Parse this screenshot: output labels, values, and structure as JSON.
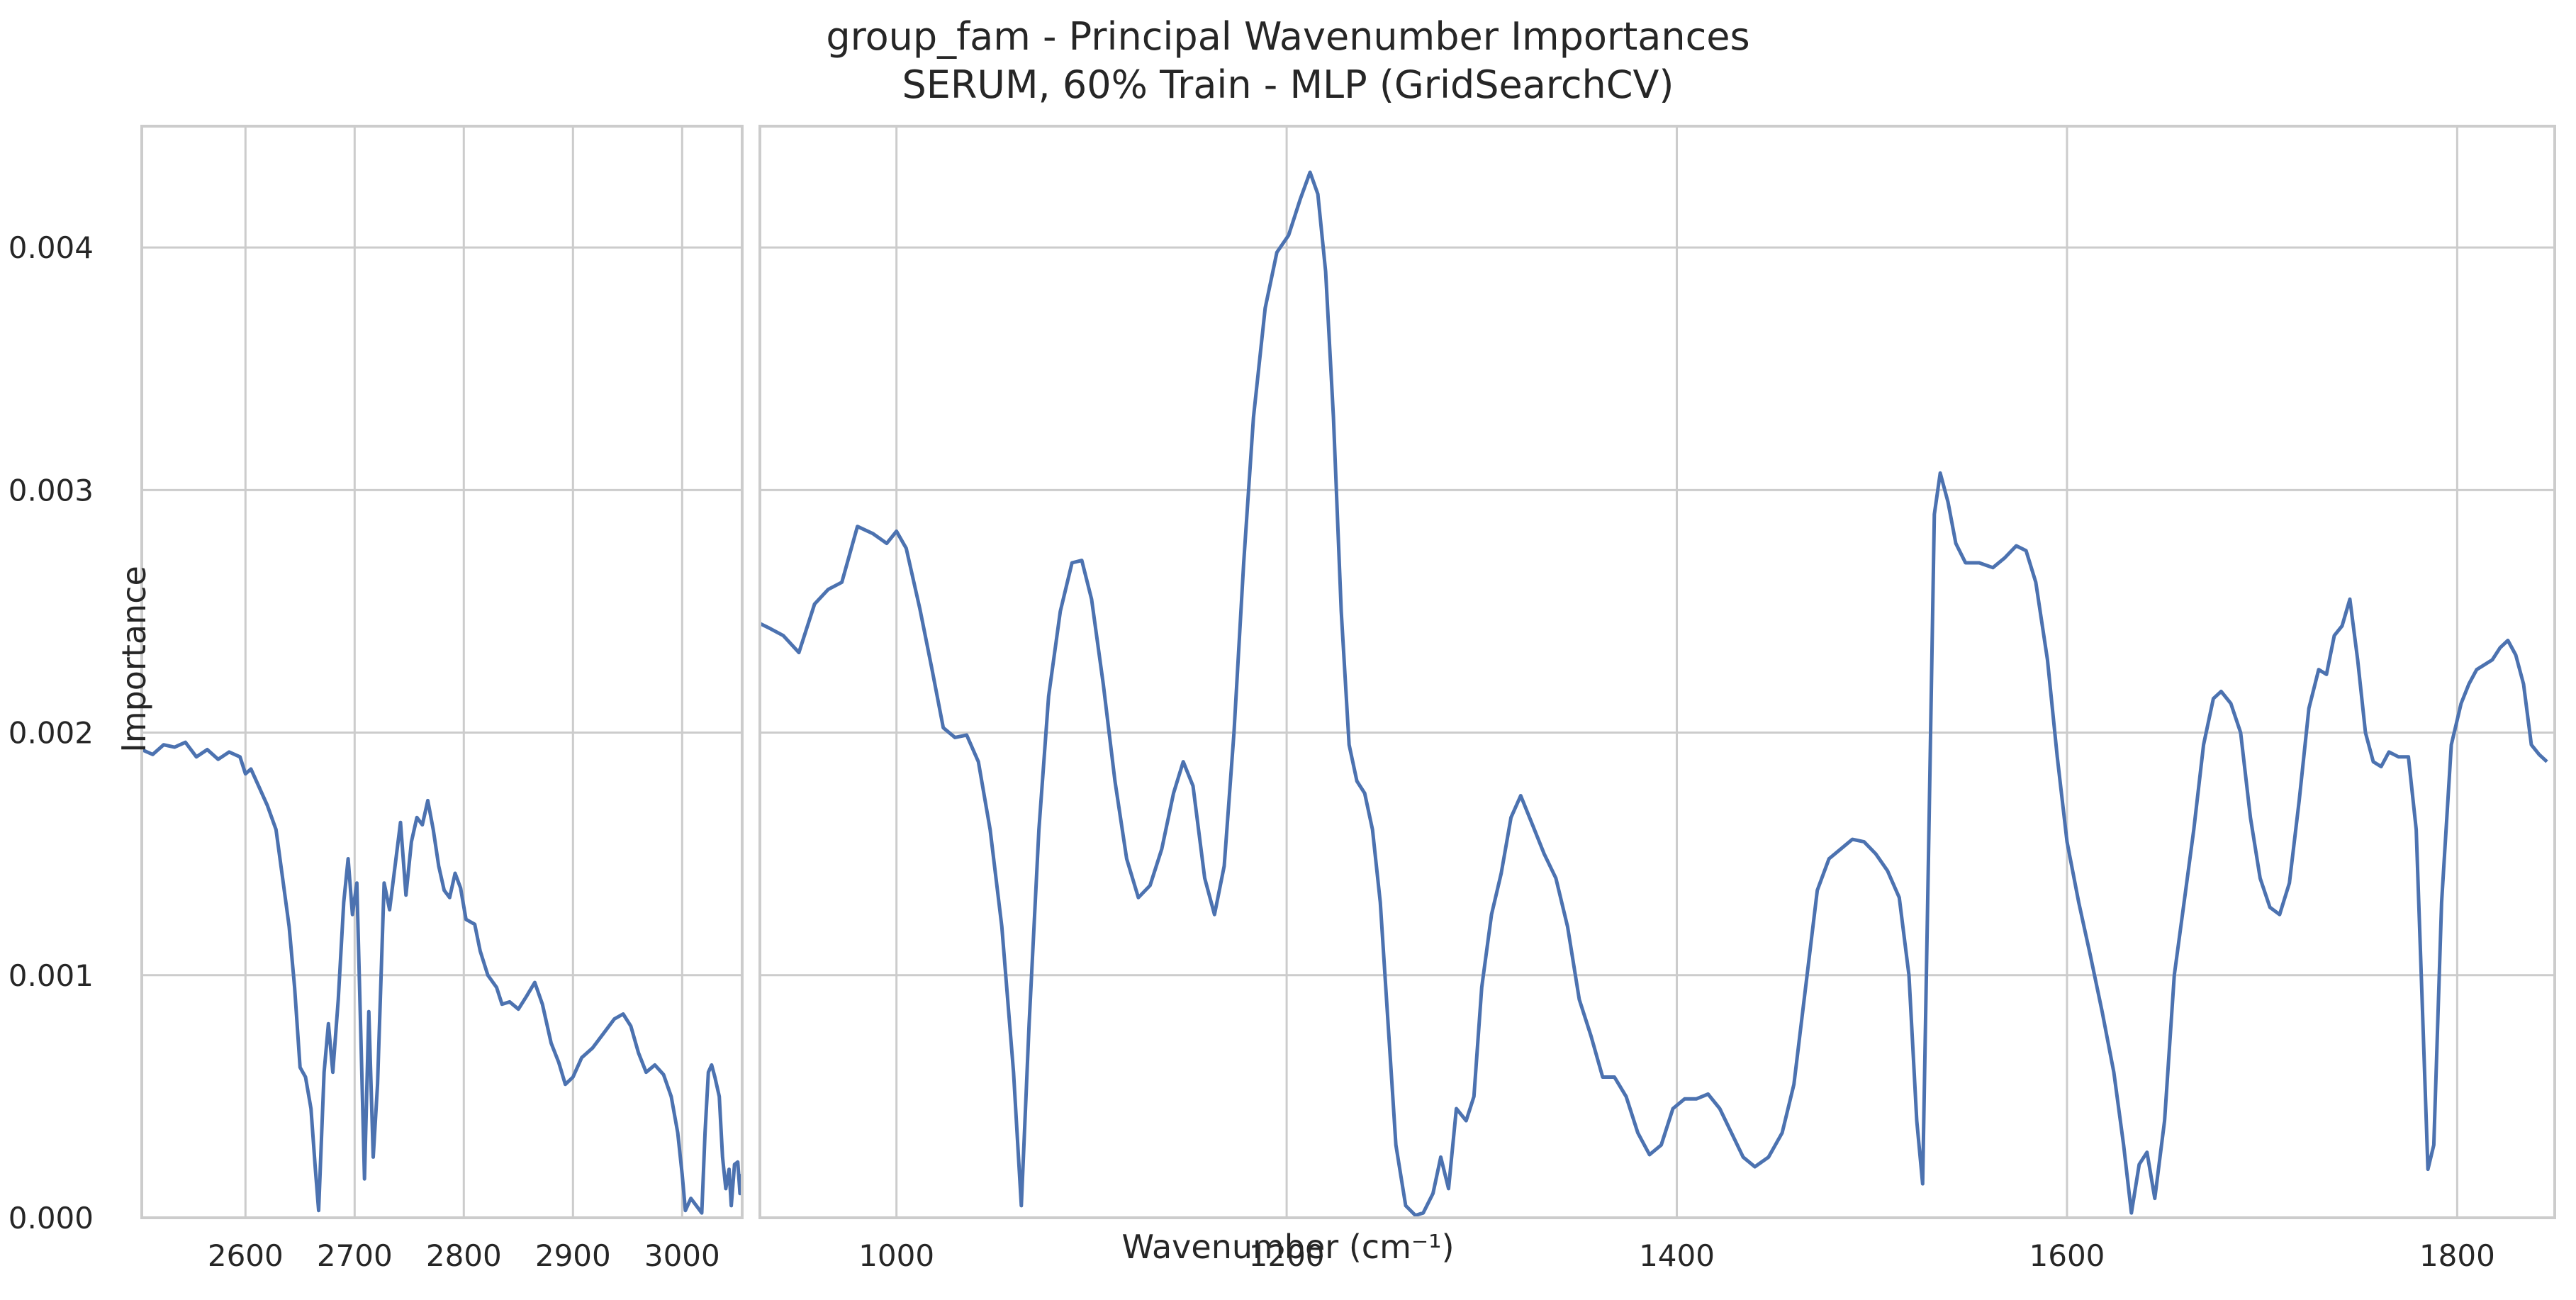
{
  "chart_data": {
    "type": "line",
    "title": "group_fam - Principal Wavenumber Importances",
    "subtitle": "SERUM, 60% Train - MLP (GridSearchCV)",
    "xlabel": "Wavenumber (cm⁻¹)",
    "ylabel": "Importance",
    "ylim": [
      0.0,
      0.0045
    ],
    "y_ticks": [
      0.0,
      0.001,
      0.002,
      0.003,
      0.004
    ],
    "y_tick_labels": [
      "0.000",
      "0.001",
      "0.002",
      "0.003",
      "0.004"
    ],
    "grid": true,
    "line_color": "#4c72b0",
    "panels": [
      {
        "xlim": [
          2505,
          3055
        ],
        "x_ticks": [
          2600,
          2700,
          2800,
          2900,
          3000
        ],
        "x_tick_labels": [
          "2600",
          "2700",
          "2800",
          "2900",
          "3000"
        ],
        "points": [
          [
            2505,
            0.00193
          ],
          [
            2515,
            0.00191
          ],
          [
            2525,
            0.00195
          ],
          [
            2535,
            0.00194
          ],
          [
            2545,
            0.00196
          ],
          [
            2555,
            0.0019
          ],
          [
            2565,
            0.00193
          ],
          [
            2575,
            0.00189
          ],
          [
            2585,
            0.00192
          ],
          [
            2595,
            0.0019
          ],
          [
            2600,
            0.00183
          ],
          [
            2605,
            0.00185
          ],
          [
            2612,
            0.00178
          ],
          [
            2620,
            0.0017
          ],
          [
            2628,
            0.0016
          ],
          [
            2634,
            0.0014
          ],
          [
            2640,
            0.0012
          ],
          [
            2645,
            0.00095
          ],
          [
            2650,
            0.00062
          ],
          [
            2655,
            0.00058
          ],
          [
            2660,
            0.00045
          ],
          [
            2664,
            0.0002
          ],
          [
            2667,
            3e-05
          ],
          [
            2672,
            0.0006
          ],
          [
            2676,
            0.0008
          ],
          [
            2680,
            0.0006
          ],
          [
            2685,
            0.0009
          ],
          [
            2690,
            0.0013
          ],
          [
            2694,
            0.00148
          ],
          [
            2698,
            0.00125
          ],
          [
            2702,
            0.00138
          ],
          [
            2706,
            0.0007
          ],
          [
            2709,
            0.00016
          ],
          [
            2713,
            0.00085
          ],
          [
            2717,
            0.00025
          ],
          [
            2721,
            0.00055
          ],
          [
            2727,
            0.00138
          ],
          [
            2732,
            0.00127
          ],
          [
            2737,
            0.00145
          ],
          [
            2742,
            0.00163
          ],
          [
            2747,
            0.00133
          ],
          [
            2752,
            0.00155
          ],
          [
            2757,
            0.00165
          ],
          [
            2762,
            0.00162
          ],
          [
            2767,
            0.00172
          ],
          [
            2772,
            0.0016
          ],
          [
            2777,
            0.00145
          ],
          [
            2782,
            0.00135
          ],
          [
            2787,
            0.00132
          ],
          [
            2792,
            0.00142
          ],
          [
            2797,
            0.00136
          ],
          [
            2802,
            0.00123
          ],
          [
            2810,
            0.00121
          ],
          [
            2815,
            0.0011
          ],
          [
            2822,
            0.001
          ],
          [
            2830,
            0.00095
          ],
          [
            2835,
            0.00088
          ],
          [
            2842,
            0.00089
          ],
          [
            2850,
            0.00086
          ],
          [
            2857,
            0.00091
          ],
          [
            2865,
            0.00097
          ],
          [
            2872,
            0.00088
          ],
          [
            2880,
            0.00072
          ],
          [
            2887,
            0.00064
          ],
          [
            2893,
            0.00055
          ],
          [
            2900,
            0.00058
          ],
          [
            2908,
            0.00066
          ],
          [
            2918,
            0.0007
          ],
          [
            2928,
            0.00076
          ],
          [
            2938,
            0.00082
          ],
          [
            2946,
            0.00084
          ],
          [
            2953,
            0.00079
          ],
          [
            2960,
            0.00068
          ],
          [
            2967,
            0.0006
          ],
          [
            2975,
            0.00063
          ],
          [
            2983,
            0.00059
          ],
          [
            2990,
            0.0005
          ],
          [
            2996,
            0.00035
          ],
          [
            3000,
            0.00018
          ],
          [
            3003,
            3e-05
          ],
          [
            3008,
            8e-05
          ],
          [
            3013,
            5e-05
          ],
          [
            3018,
            2e-05
          ],
          [
            3021,
            0.00035
          ],
          [
            3024,
            0.0006
          ],
          [
            3027,
            0.00063
          ],
          [
            3030,
            0.00058
          ],
          [
            3034,
            0.0005
          ],
          [
            3037,
            0.00025
          ],
          [
            3040,
            0.00012
          ],
          [
            3043,
            0.0002
          ],
          [
            3045,
            5e-05
          ],
          [
            3048,
            0.00022
          ],
          [
            3051,
            0.00023
          ],
          [
            3053,
            0.0001
          ],
          [
            3055,
            0.00018
          ]
        ]
      },
      {
        "xlim": [
          930,
          1850
        ],
        "x_ticks": [
          1000,
          1200,
          1400,
          1600,
          1800
        ],
        "x_tick_labels": [
          "1000",
          "1200",
          "1400",
          "1600",
          "1800"
        ],
        "points": [
          [
            930,
            0.00245
          ],
          [
            935,
            0.00243
          ],
          [
            942,
            0.0024
          ],
          [
            950,
            0.00233
          ],
          [
            958,
            0.00253
          ],
          [
            965,
            0.00259
          ],
          [
            972,
            0.00262
          ],
          [
            980,
            0.00285
          ],
          [
            988,
            0.00282
          ],
          [
            995,
            0.00278
          ],
          [
            1000,
            0.00283
          ],
          [
            1005,
            0.00276
          ],
          [
            1012,
            0.00251
          ],
          [
            1018,
            0.00227
          ],
          [
            1024,
            0.00202
          ],
          [
            1030,
            0.00198
          ],
          [
            1036,
            0.00199
          ],
          [
            1042,
            0.00188
          ],
          [
            1048,
            0.0016
          ],
          [
            1054,
            0.0012
          ],
          [
            1060,
            0.0006
          ],
          [
            1064,
            5e-05
          ],
          [
            1068,
            0.0008
          ],
          [
            1073,
            0.0016
          ],
          [
            1078,
            0.00215
          ],
          [
            1084,
            0.0025
          ],
          [
            1090,
            0.0027
          ],
          [
            1095,
            0.00271
          ],
          [
            1100,
            0.00255
          ],
          [
            1106,
            0.0022
          ],
          [
            1112,
            0.0018
          ],
          [
            1118,
            0.00148
          ],
          [
            1124,
            0.00132
          ],
          [
            1130,
            0.00137
          ],
          [
            1136,
            0.00152
          ],
          [
            1142,
            0.00175
          ],
          [
            1147,
            0.00188
          ],
          [
            1152,
            0.00178
          ],
          [
            1158,
            0.0014
          ],
          [
            1163,
            0.00125
          ],
          [
            1168,
            0.00145
          ],
          [
            1173,
            0.002
          ],
          [
            1178,
            0.0027
          ],
          [
            1183,
            0.0033
          ],
          [
            1189,
            0.00375
          ],
          [
            1195,
            0.00398
          ],
          [
            1201,
            0.00405
          ],
          [
            1207,
            0.0042
          ],
          [
            1212,
            0.00431
          ],
          [
            1216,
            0.00422
          ],
          [
            1220,
            0.0039
          ],
          [
            1224,
            0.0033
          ],
          [
            1228,
            0.0025
          ],
          [
            1232,
            0.00195
          ],
          [
            1236,
            0.0018
          ],
          [
            1240,
            0.00175
          ],
          [
            1244,
            0.0016
          ],
          [
            1248,
            0.0013
          ],
          [
            1252,
            0.0008
          ],
          [
            1256,
            0.0003
          ],
          [
            1261,
            5e-05
          ],
          [
            1266,
            1e-05
          ],
          [
            1270,
            2e-05
          ],
          [
            1275,
            0.0001
          ],
          [
            1279,
            0.00025
          ],
          [
            1283,
            0.00012
          ],
          [
            1287,
            0.00045
          ],
          [
            1292,
            0.0004
          ],
          [
            1296,
            0.0005
          ],
          [
            1300,
            0.00095
          ],
          [
            1305,
            0.00125
          ],
          [
            1310,
            0.00142
          ],
          [
            1315,
            0.00165
          ],
          [
            1320,
            0.00174
          ],
          [
            1326,
            0.00162
          ],
          [
            1332,
            0.0015
          ],
          [
            1338,
            0.0014
          ],
          [
            1344,
            0.0012
          ],
          [
            1350,
            0.0009
          ],
          [
            1356,
            0.00075
          ],
          [
            1362,
            0.00058
          ],
          [
            1368,
            0.00058
          ],
          [
            1374,
            0.0005
          ],
          [
            1380,
            0.00035
          ],
          [
            1386,
            0.00026
          ],
          [
            1392,
            0.0003
          ],
          [
            1398,
            0.00045
          ],
          [
            1404,
            0.00049
          ],
          [
            1410,
            0.00049
          ],
          [
            1416,
            0.00051
          ],
          [
            1422,
            0.00045
          ],
          [
            1428,
            0.00035
          ],
          [
            1434,
            0.00025
          ],
          [
            1440,
            0.00021
          ],
          [
            1447,
            0.00025
          ],
          [
            1454,
            0.00035
          ],
          [
            1460,
            0.00055
          ],
          [
            1466,
            0.00095
          ],
          [
            1472,
            0.00135
          ],
          [
            1478,
            0.00148
          ],
          [
            1484,
            0.00152
          ],
          [
            1490,
            0.00156
          ],
          [
            1496,
            0.00155
          ],
          [
            1502,
            0.0015
          ],
          [
            1508,
            0.00143
          ],
          [
            1514,
            0.00132
          ],
          [
            1519,
            0.001
          ],
          [
            1523,
            0.0004
          ],
          [
            1526,
            0.00014
          ],
          [
            1529,
            0.0015
          ],
          [
            1532,
            0.0029
          ],
          [
            1535,
            0.00307
          ],
          [
            1539,
            0.00295
          ],
          [
            1543,
            0.00278
          ],
          [
            1548,
            0.0027
          ],
          [
            1555,
            0.0027
          ],
          [
            1562,
            0.00268
          ],
          [
            1568,
            0.00272
          ],
          [
            1574,
            0.00277
          ],
          [
            1579,
            0.00275
          ],
          [
            1584,
            0.00262
          ],
          [
            1590,
            0.0023
          ],
          [
            1595,
            0.0019
          ],
          [
            1600,
            0.00155
          ],
          [
            1606,
            0.0013
          ],
          [
            1612,
            0.00108
          ],
          [
            1618,
            0.00085
          ],
          [
            1624,
            0.0006
          ],
          [
            1629,
            0.0003
          ],
          [
            1633,
            2e-05
          ],
          [
            1637,
            0.00022
          ],
          [
            1641,
            0.00027
          ],
          [
            1645,
            8e-05
          ],
          [
            1650,
            0.0004
          ],
          [
            1655,
            0.001
          ],
          [
            1660,
            0.0013
          ],
          [
            1665,
            0.0016
          ],
          [
            1670,
            0.00195
          ],
          [
            1675,
            0.00214
          ],
          [
            1679,
            0.00217
          ],
          [
            1684,
            0.00212
          ],
          [
            1689,
            0.002
          ],
          [
            1694,
            0.00165
          ],
          [
            1699,
            0.0014
          ],
          [
            1704,
            0.00128
          ],
          [
            1709,
            0.00125
          ],
          [
            1714,
            0.00138
          ],
          [
            1719,
            0.00172
          ],
          [
            1724,
            0.0021
          ],
          [
            1729,
            0.00226
          ],
          [
            1733,
            0.00224
          ],
          [
            1737,
            0.0024
          ],
          [
            1741,
            0.00244
          ],
          [
            1745,
            0.00255
          ],
          [
            1749,
            0.0023
          ],
          [
            1753,
            0.002
          ],
          [
            1757,
            0.00188
          ],
          [
            1761,
            0.00186
          ],
          [
            1765,
            0.00192
          ],
          [
            1770,
            0.0019
          ],
          [
            1775,
            0.0019
          ],
          [
            1779,
            0.0016
          ],
          [
            1782,
            0.0009
          ],
          [
            1785,
            0.0002
          ],
          [
            1788,
            0.0003
          ],
          [
            1792,
            0.0013
          ],
          [
            1797,
            0.00195
          ],
          [
            1802,
            0.00212
          ],
          [
            1806,
            0.0022
          ],
          [
            1810,
            0.00226
          ],
          [
            1814,
            0.00228
          ],
          [
            1818,
            0.0023
          ],
          [
            1822,
            0.00235
          ],
          [
            1826,
            0.00238
          ],
          [
            1830,
            0.00232
          ],
          [
            1834,
            0.0022
          ],
          [
            1838,
            0.00195
          ],
          [
            1842,
            0.00191
          ],
          [
            1846,
            0.00188
          ]
        ]
      }
    ]
  }
}
